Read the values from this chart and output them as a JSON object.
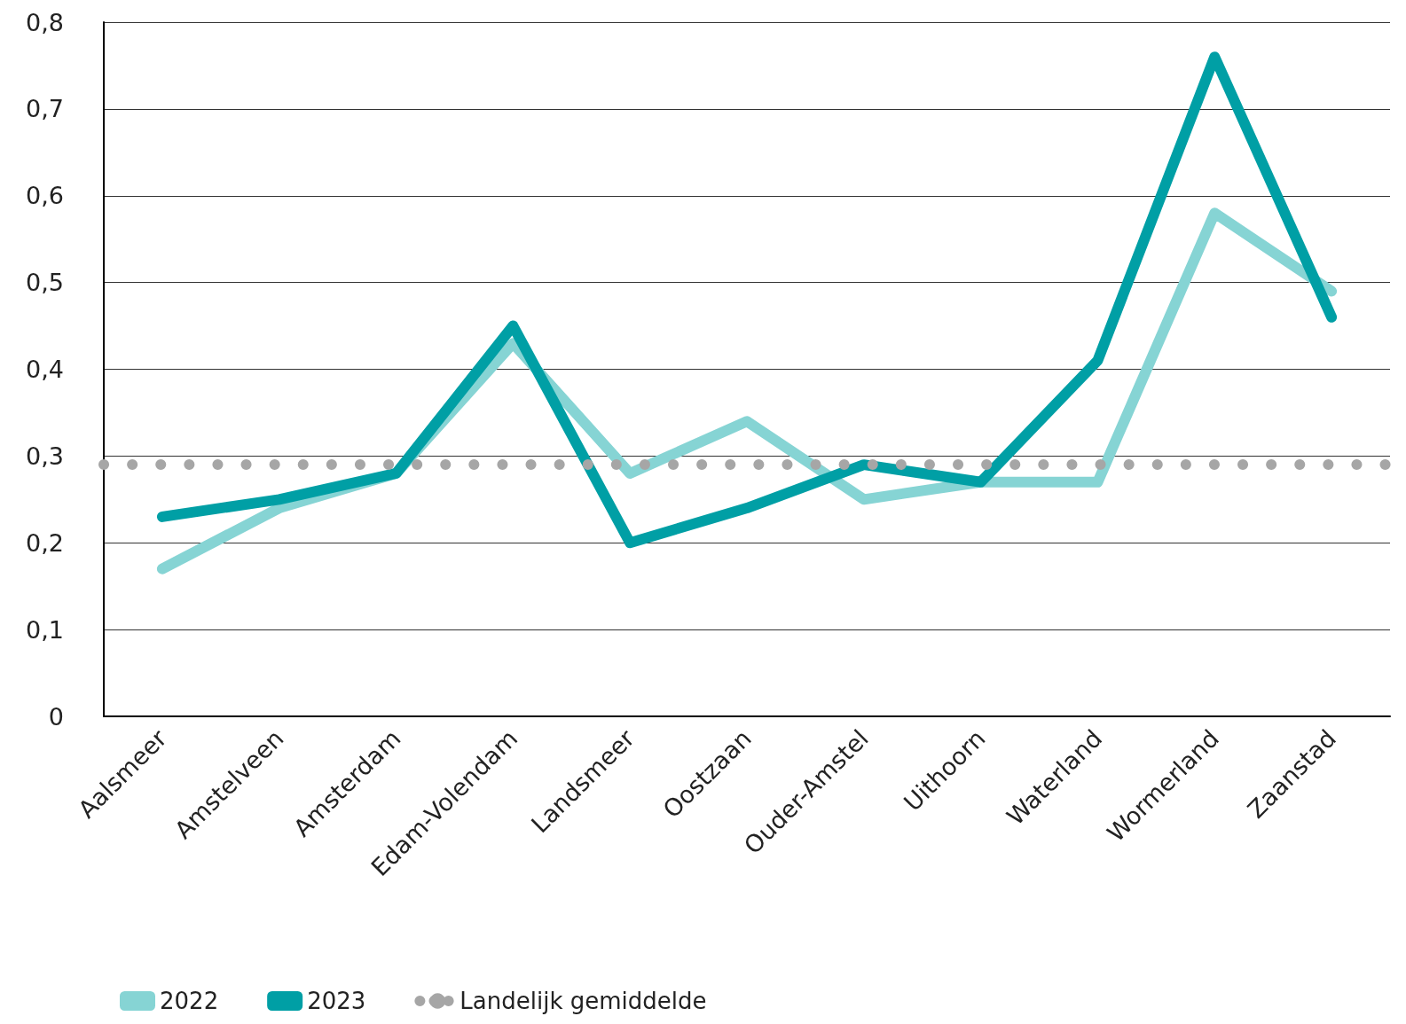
{
  "chart_data": {
    "type": "line",
    "categories": [
      "Aalsmeer",
      "Amstelveen",
      "Amsterdam",
      "Edam-Volendam",
      "Landsmeer",
      "Oostzaan",
      "Ouder-Amstel",
      "Uithoorn",
      "Waterland",
      "Wormerland",
      "Zaanstad"
    ],
    "series": [
      {
        "name": "2022",
        "color": "#86d4d4",
        "values": [
          0.17,
          0.24,
          0.28,
          0.43,
          0.28,
          0.34,
          0.25,
          0.27,
          0.27,
          0.58,
          0.49
        ]
      },
      {
        "name": "2023",
        "color": "#009fa5",
        "values": [
          0.23,
          0.25,
          0.28,
          0.45,
          0.2,
          0.24,
          0.29,
          0.27,
          0.41,
          0.76,
          0.46
        ]
      }
    ],
    "ref_lines": [
      {
        "axis": "y",
        "value": 0.29,
        "label": "Landelijk gemiddelde",
        "color": "#a6a6a6",
        "line_style": "dotted"
      }
    ],
    "ylim": [
      0,
      0.8
    ],
    "yticks": [
      {
        "value": 0,
        "label": "0"
      },
      {
        "value": 0.1,
        "label": "0,1"
      },
      {
        "value": 0.2,
        "label": "0,2"
      },
      {
        "value": 0.3,
        "label": "0,3"
      },
      {
        "value": 0.4,
        "label": "0,4"
      },
      {
        "value": 0.5,
        "label": "0,5"
      },
      {
        "value": 0.6,
        "label": "0,6"
      },
      {
        "value": 0.7,
        "label": "0,7"
      },
      {
        "value": 0.8,
        "label": "0,8"
      }
    ],
    "grid": "y",
    "legend": "bottom left",
    "marker": "none",
    "line_style": "solid"
  }
}
